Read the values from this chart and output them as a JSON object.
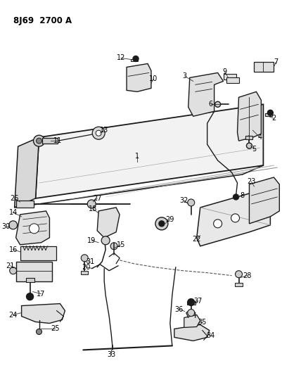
{
  "title": "8J69  2700 A",
  "bg": "#ffffff",
  "lc": "#1a1a1a",
  "fig_w": 4.01,
  "fig_h": 5.33,
  "dpi": 100
}
